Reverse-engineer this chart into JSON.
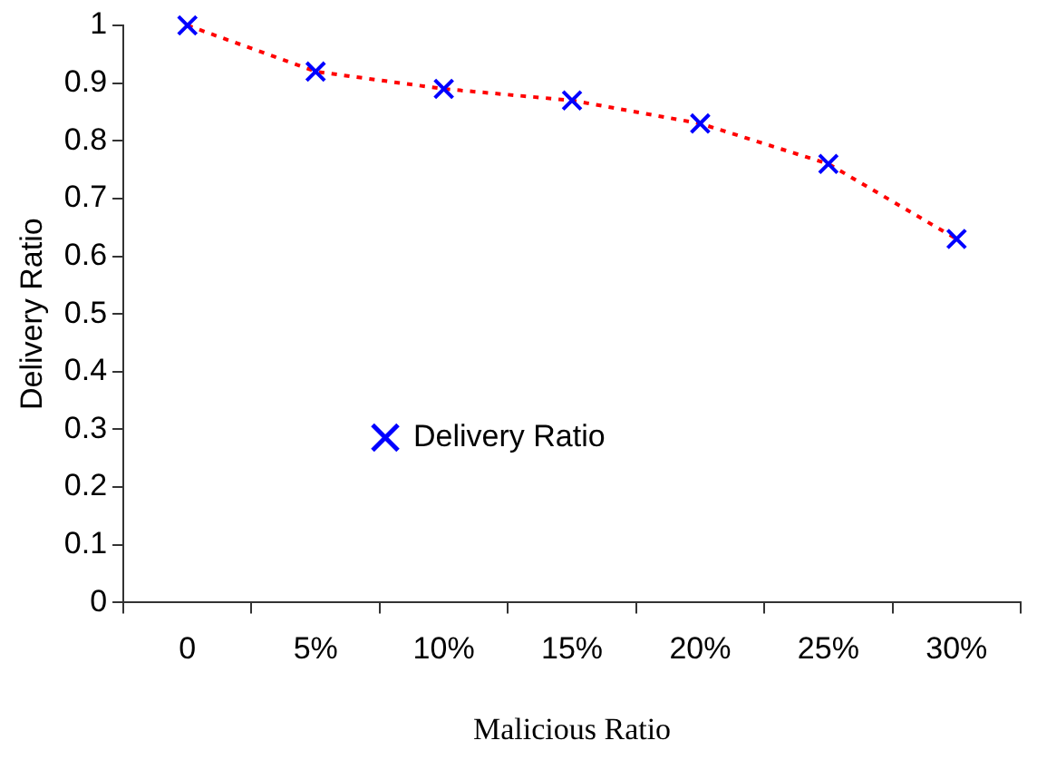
{
  "chart_data": {
    "type": "line",
    "xlabel": "Malicious Ratio",
    "ylabel": "Delivery Ratio",
    "categories": [
      "0",
      "5%",
      "10%",
      "15%",
      "20%",
      "25%",
      "30%"
    ],
    "series": [
      {
        "name": "Delivery Ratio",
        "color": "#ff0000",
        "colors": [
          "#0000ff",
          "#0000ff",
          "#0000ff",
          "#0000ff",
          "#0000ff",
          "#0000ff",
          "#0000ff"
        ],
        "values": [
          1.0,
          0.92,
          0.89,
          0.87,
          0.83,
          0.76,
          0.63
        ]
      }
    ],
    "ylim": [
      0,
      1
    ],
    "yticks": [
      0,
      0.1,
      0.2,
      0.3,
      0.4,
      0.5,
      0.6,
      0.7,
      0.8,
      0.9,
      1
    ],
    "grid": false,
    "legend": "center",
    "marker": "cross",
    "line_style": "dotted"
  }
}
